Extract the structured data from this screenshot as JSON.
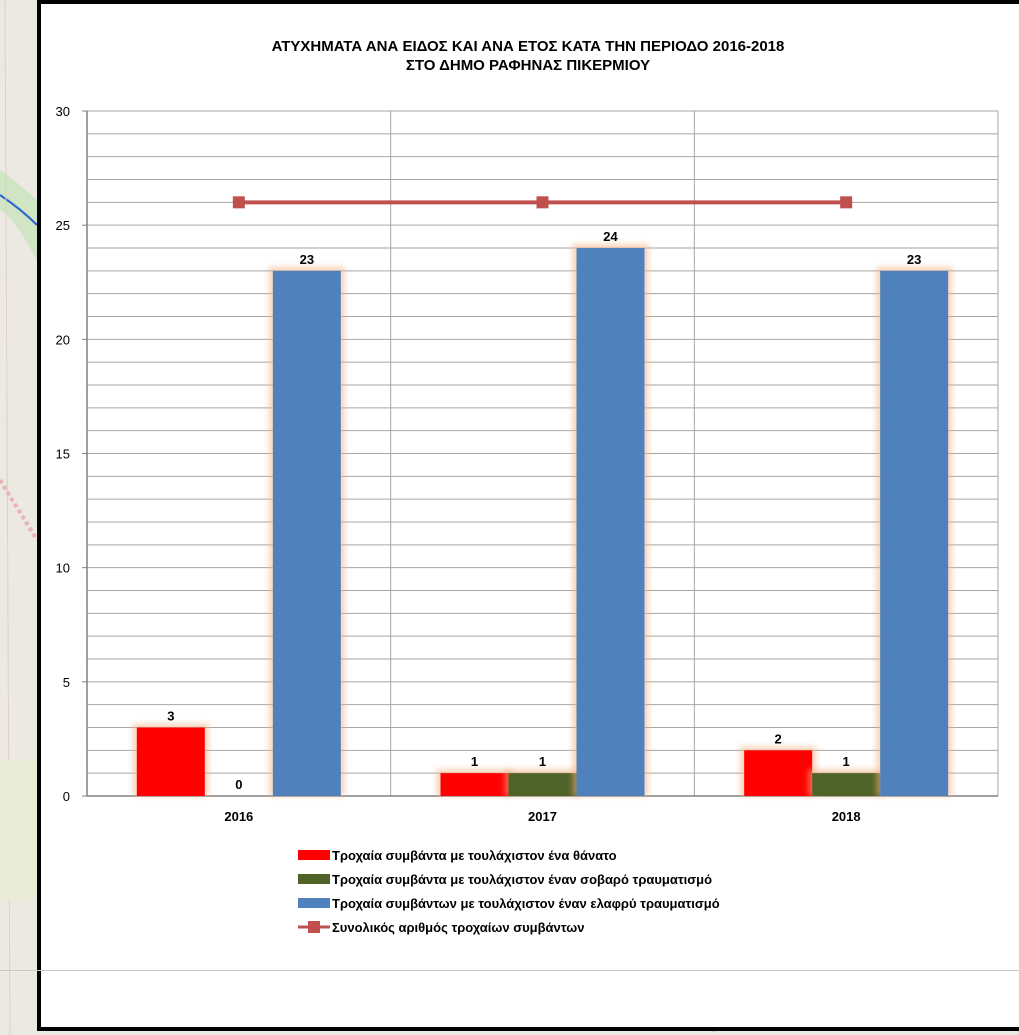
{
  "chart_data": {
    "type": "bar",
    "title_lines": [
      "ΑΤΥΧΗΜΑΤΑ ΑΝΑ ΕΙΔΟΣ ΚΑΙ ΑΝΑ ΕΤΟΣ ΚΑΤΑ ΤΗΝ ΠΕΡΙΟΔΟ 2016-2018",
      "ΣΤΟ ΔΗΜΟ ΡΑΦΗΝΑΣ ΠΙΚΕΡΜΙΟΥ"
    ],
    "categories": [
      "2016",
      "2017",
      "2018"
    ],
    "ylim": [
      0,
      30
    ],
    "yticks": [
      "0",
      "5",
      "10",
      "15",
      "20",
      "25",
      "30"
    ],
    "grid": true,
    "legend_position": "bottom",
    "series": [
      {
        "name": "Τροχαία συμβάντα με τουλάχιστον ένα θάνατο",
        "type": "bar",
        "color": "#ff0000",
        "values": [
          3,
          1,
          2
        ],
        "labels": [
          "3",
          "1",
          "2"
        ]
      },
      {
        "name": "Τροχαία συμβάντα με τουλάχιστον έναν σοβαρό τραυματισμό",
        "type": "bar",
        "color": "#4f6228",
        "values": [
          0,
          1,
          1
        ],
        "labels": [
          "0",
          "1",
          "1"
        ]
      },
      {
        "name": "Τροχαία συμβάντων με τουλάχιστον έναν ελαφρύ τραυματισμό",
        "type": "bar",
        "color": "#4f81bd",
        "values": [
          23,
          24,
          23
        ],
        "labels": [
          "23",
          "24",
          "23"
        ]
      },
      {
        "name": "Συνολικός αριθμός τροχαίων συμβάντων",
        "type": "line",
        "color": "#c0504d",
        "values": [
          26,
          26,
          26
        ]
      }
    ]
  }
}
